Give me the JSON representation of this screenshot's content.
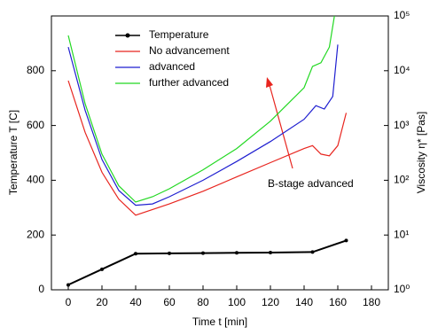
{
  "chart_data": {
    "type": "line",
    "x_label": "Time t [min]",
    "y_label": "Temperature T [C]",
    "y2_label": "Viscosity η* [Pas]",
    "xlim": [
      -10,
      190
    ],
    "xticks": [
      0,
      20,
      40,
      60,
      80,
      100,
      120,
      140,
      160,
      180
    ],
    "ylim": [
      0,
      1000
    ],
    "yticks": [
      0,
      200,
      400,
      600,
      800
    ],
    "y2lim": [
      1,
      100000
    ],
    "y2_log": true,
    "y2ticks": [
      {
        "value": 1,
        "label": "10⁰"
      },
      {
        "value": 10,
        "label": "10¹"
      },
      {
        "value": 100,
        "label": "10²"
      },
      {
        "value": 1000,
        "label": "10³"
      },
      {
        "value": 10000,
        "label": "10⁴"
      },
      {
        "value": 100000,
        "label": "10⁵"
      }
    ],
    "annotation": "B-stage advanced",
    "series": [
      {
        "name": "Temperature",
        "color": "#000000",
        "marker": true,
        "x": [
          0,
          20,
          40,
          60,
          80,
          100,
          120,
          145,
          165
        ],
        "values": [
          18,
          75,
          132,
          133,
          134,
          135,
          136,
          138,
          180
        ]
      },
      {
        "name": "No advancement",
        "color": "#e8251f",
        "axis": "y2",
        "x": [
          0,
          10,
          20,
          30,
          40,
          60,
          80,
          100,
          120,
          140,
          145,
          150,
          155,
          160,
          165
        ],
        "values": [
          6600,
          750,
          140,
          45,
          23,
          37,
          63,
          115,
          210,
          380,
          430,
          300,
          280,
          430,
          1700
        ]
      },
      {
        "name": "advanced",
        "color": "#1f1fd0",
        "axis": "y2",
        "x": [
          0,
          10,
          20,
          30,
          40,
          50,
          60,
          80,
          100,
          120,
          140,
          147,
          152,
          157,
          160
        ],
        "values": [
          27000,
          1900,
          240,
          65,
          35,
          37,
          50,
          100,
          220,
          510,
          1300,
          2300,
          2000,
          3400,
          30000
        ]
      },
      {
        "name": "further advanced",
        "color": "#22d822",
        "axis": "y2",
        "x": [
          0,
          10,
          20,
          30,
          40,
          50,
          60,
          80,
          100,
          120,
          140,
          145,
          150,
          155,
          158
        ],
        "values": [
          44000,
          2500,
          300,
          79,
          40,
          50,
          70,
          155,
          380,
          1200,
          4900,
          12000,
          14000,
          27000,
          100000
        ]
      }
    ]
  }
}
